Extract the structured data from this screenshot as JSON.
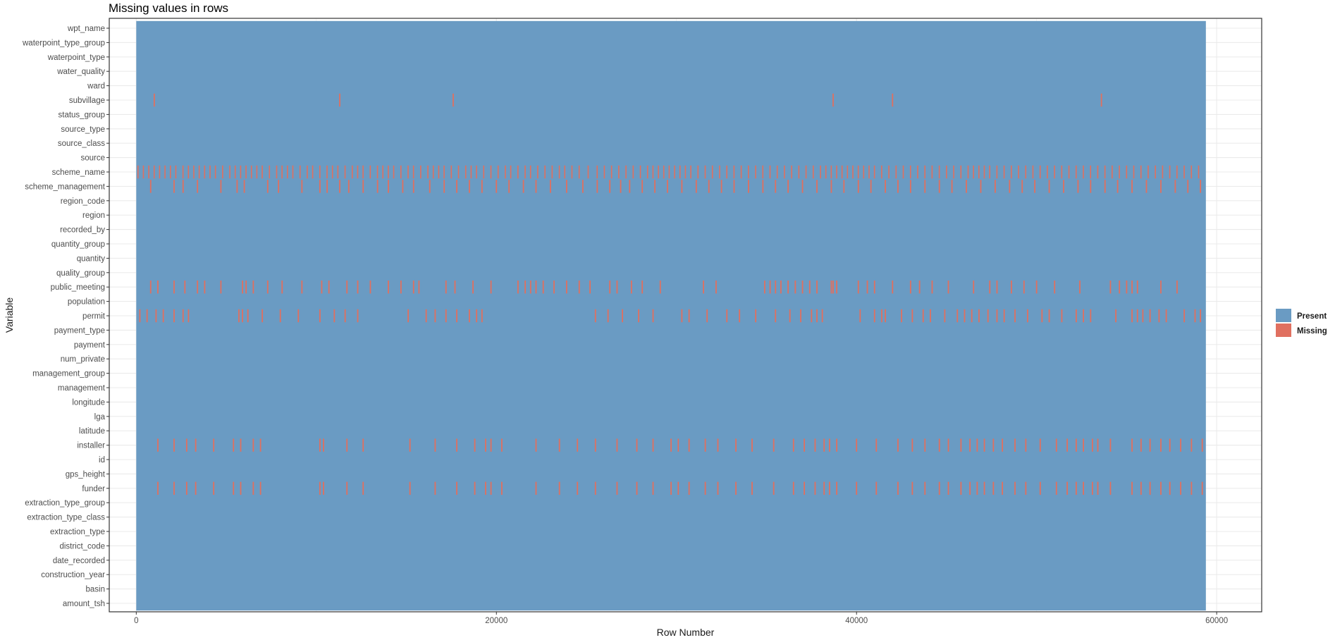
{
  "chart_data": {
    "type": "heatmap",
    "title": "Missing values in rows",
    "xlabel": "Row Number",
    "ylabel": "Variable",
    "xlim": [
      -1500,
      62500
    ],
    "x_range_rows": [
      0,
      59400
    ],
    "x_ticks": [
      0,
      20000,
      40000,
      60000
    ],
    "x_tick_labels": [
      "0",
      "20000",
      "40000",
      "60000"
    ],
    "grid": true,
    "legend_position": "right",
    "legend": [
      {
        "label": "Present",
        "color": "#6a9bc3"
      },
      {
        "label": "Missing",
        "color": "#e07060"
      }
    ],
    "variables": [
      "wpt_name",
      "waterpoint_type_group",
      "waterpoint_type",
      "water_quality",
      "ward",
      "subvillage",
      "status_group",
      "source_type",
      "source_class",
      "source",
      "scheme_name",
      "scheme_management",
      "region_code",
      "region",
      "recorded_by",
      "quantity_group",
      "quantity",
      "quality_group",
      "public_meeting",
      "population",
      "permit",
      "payment_type",
      "payment",
      "num_private",
      "management_group",
      "management",
      "longitude",
      "lga",
      "latitude",
      "installer",
      "id",
      "gps_height",
      "funder",
      "extraction_type_group",
      "extraction_type_class",
      "extraction_type",
      "district_code",
      "date_recorded",
      "construction_year",
      "basin",
      "amount_tsh"
    ],
    "missing_rows": {
      "subvillage": [
        1000,
        11300,
        17600,
        38700,
        42000,
        53600
      ],
      "scheme_name": [
        100,
        400,
        700,
        1000,
        1300,
        1600,
        1900,
        2200,
        2600,
        2900,
        3200,
        3500,
        3800,
        4100,
        4400,
        4800,
        5200,
        5500,
        5800,
        6100,
        6400,
        6700,
        7000,
        7400,
        7800,
        8100,
        8400,
        8700,
        9100,
        9500,
        9800,
        10200,
        10600,
        10900,
        11200,
        11600,
        12000,
        12300,
        12600,
        13000,
        13400,
        13700,
        14000,
        14300,
        14700,
        15100,
        15400,
        15800,
        16200,
        16500,
        16800,
        17100,
        17500,
        17900,
        18300,
        18600,
        18900,
        19300,
        19700,
        20100,
        20500,
        20800,
        21200,
        21600,
        21900,
        22300,
        22700,
        23100,
        23500,
        23800,
        24200,
        24600,
        25100,
        25600,
        26000,
        26400,
        26800,
        27200,
        27600,
        28000,
        28400,
        28700,
        29000,
        29300,
        29600,
        29900,
        30200,
        30500,
        30800,
        31200,
        31600,
        32000,
        32400,
        32800,
        33200,
        33600,
        34000,
        34400,
        34800,
        35200,
        35600,
        36000,
        36400,
        36800,
        37200,
        37600,
        38000,
        38300,
        38600,
        38900,
        39200,
        39500,
        39800,
        40100,
        40400,
        40700,
        41000,
        41400,
        41800,
        42200,
        42600,
        43000,
        43400,
        43800,
        44200,
        44600,
        45000,
        45400,
        45800,
        46200,
        46500,
        46800,
        47100,
        47400,
        47800,
        48200,
        48600,
        49000,
        49400,
        49800,
        50200,
        50600,
        51000,
        51400,
        51800,
        52200,
        52600,
        53000,
        53400,
        53800,
        54200,
        54600,
        55000,
        55400,
        55800,
        56200,
        56600,
        57000,
        57400,
        57800,
        58200,
        58600,
        59000
      ],
      "scheme_management": [
        800,
        2100,
        2600,
        3400,
        4700,
        5600,
        6000,
        7300,
        7900,
        9200,
        10200,
        10600,
        11300,
        11800,
        12600,
        13400,
        14000,
        14800,
        15400,
        16300,
        17100,
        17800,
        18500,
        19200,
        20000,
        20700,
        21500,
        22200,
        23000,
        23900,
        24800,
        25600,
        26300,
        26900,
        27400,
        28100,
        28800,
        29500,
        30300,
        31100,
        31800,
        32500,
        33200,
        34000,
        34800,
        35500,
        36200,
        37000,
        37800,
        38600,
        39300,
        40100,
        40800,
        41600,
        42300,
        43000,
        43800,
        44600,
        45300,
        46100,
        46900,
        47700,
        48500,
        49200,
        49900,
        50700,
        51500,
        52300,
        53000,
        53800,
        54500,
        55300,
        56100,
        56900,
        57700,
        58400,
        59100
      ],
      "public_meeting": [
        800,
        1200,
        2100,
        2700,
        3400,
        3800,
        4700,
        5900,
        6100,
        6500,
        7300,
        8100,
        9200,
        10300,
        10700,
        11700,
        12300,
        13000,
        14000,
        14700,
        15400,
        15700,
        17200,
        17700,
        18700,
        19700,
        21200,
        21600,
        21900,
        22200,
        22600,
        23200,
        23900,
        24600,
        25200,
        26300,
        26700,
        27500,
        28100,
        29100,
        31500,
        32200,
        34900,
        35200,
        35500,
        35800,
        36200,
        36600,
        37000,
        37400,
        37800,
        38600,
        38700,
        38900,
        40100,
        40600,
        41000,
        42000,
        43000,
        43500,
        44200,
        45100,
        46500,
        47400,
        47800,
        48600,
        49300,
        50000,
        51000,
        52400,
        54100,
        54600,
        55000,
        55300,
        55600,
        56900,
        57800
      ],
      "permit": [
        200,
        600,
        1100,
        1500,
        2100,
        2600,
        2900,
        5700,
        5900,
        6200,
        7000,
        8000,
        9000,
        10200,
        11000,
        11600,
        12300,
        15100,
        16100,
        16600,
        17200,
        17800,
        18500,
        18900,
        19200,
        25500,
        26200,
        27000,
        27900,
        28700,
        30300,
        30700,
        31700,
        32800,
        33500,
        34400,
        35500,
        36300,
        36900,
        37500,
        37800,
        38100,
        40200,
        41000,
        41400,
        41600,
        42500,
        43100,
        43700,
        44100,
        44900,
        45600,
        46000,
        46400,
        46800,
        47300,
        47800,
        48200,
        48800,
        49500,
        50300,
        50700,
        51400,
        52200,
        52600,
        53000,
        54400,
        55300,
        55600,
        55900,
        56300,
        56800,
        57200,
        58200,
        58800,
        59100
      ],
      "installer": [
        1200,
        2100,
        2800,
        3300,
        4300,
        5400,
        5800,
        6500,
        6900,
        10200,
        10400,
        11700,
        12600,
        15200,
        16600,
        17800,
        18800,
        19400,
        19700,
        20300,
        22200,
        23500,
        24500,
        25500,
        26700,
        27800,
        28700,
        29700,
        30100,
        30700,
        31600,
        32300,
        33300,
        34200,
        35400,
        36500,
        37100,
        37700,
        38200,
        38500,
        38900,
        40000,
        41100,
        42300,
        43100,
        43800,
        44600,
        45100,
        45800,
        46300,
        46700,
        47100,
        47600,
        48100,
        48800,
        49400,
        50200,
        51100,
        51700,
        52200,
        52600,
        53100,
        53400,
        54100,
        55300,
        55800,
        56300,
        56900,
        57400,
        58000,
        58600,
        59200
      ],
      "funder": [
        1200,
        2100,
        2800,
        3300,
        4300,
        5400,
        5800,
        6500,
        6900,
        10200,
        10400,
        11700,
        12600,
        15200,
        16600,
        17800,
        18800,
        19400,
        19700,
        20300,
        22200,
        23500,
        24500,
        25500,
        26700,
        27800,
        28700,
        29700,
        30100,
        30700,
        31600,
        32300,
        33300,
        34200,
        35400,
        36500,
        37100,
        37700,
        38200,
        38500,
        38900,
        40000,
        41100,
        42300,
        43100,
        43800,
        44600,
        45100,
        45800,
        46300,
        46700,
        47100,
        47600,
        48100,
        48800,
        49400,
        50200,
        51100,
        51700,
        52200,
        52600,
        53100,
        53400,
        54100,
        55300,
        55800,
        56300,
        56900,
        57400,
        58000,
        58600,
        59200
      ]
    }
  }
}
